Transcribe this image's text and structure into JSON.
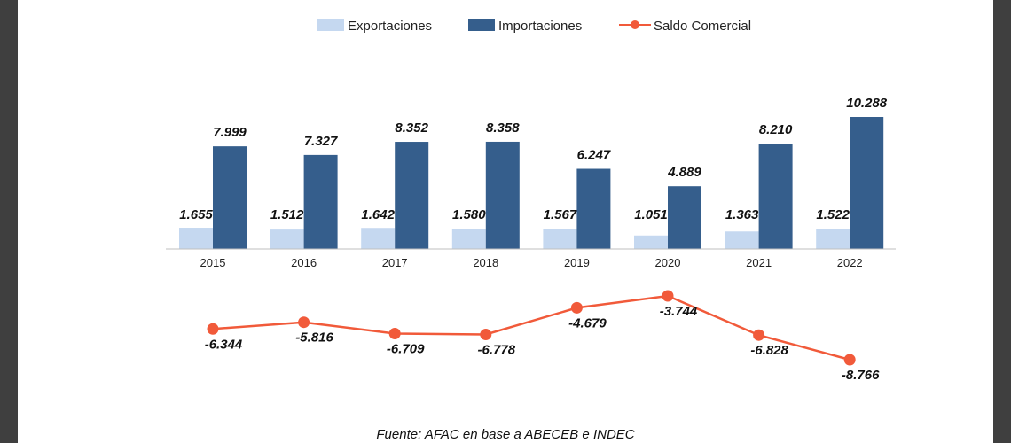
{
  "colors": {
    "exportaciones": "#c5d8f0",
    "importaciones": "#355e8c",
    "saldo": "#f15a3a",
    "frame": "#3f3f3f"
  },
  "legend": {
    "exportaciones": "Exportaciones",
    "importaciones": "Importaciones",
    "saldo": "Saldo Comercial"
  },
  "source": "Fuente: AFAC en base a ABECEB e INDEC",
  "chart_data": {
    "type": "bar",
    "categories": [
      "2015",
      "2016",
      "2017",
      "2018",
      "2019",
      "2020",
      "2021",
      "2022"
    ],
    "series": [
      {
        "name": "Exportaciones",
        "values": [
          1655,
          1512,
          1642,
          1580,
          1567,
          1051,
          1363,
          1522
        ],
        "labels": [
          "1.655",
          "1.512",
          "1.642",
          "1.580",
          "1.567",
          "1.051",
          "1.363",
          "1.522"
        ]
      },
      {
        "name": "Importaciones",
        "values": [
          7999,
          7327,
          8352,
          8358,
          6247,
          4889,
          8210,
          10288
        ],
        "labels": [
          "7.999",
          "7.327",
          "8.352",
          "8.358",
          "6.247",
          "4.889",
          "8.210",
          "10.288"
        ]
      },
      {
        "name": "Saldo Comercial",
        "type": "line",
        "values": [
          -6344,
          -5816,
          -6709,
          -6778,
          -4679,
          -3744,
          -6828,
          -8766
        ],
        "labels": [
          "-6.344",
          "-5.816",
          "-6.709",
          "-6.778",
          "-4.679",
          "-3.744",
          "-6.828",
          "-8.766"
        ]
      }
    ],
    "legend_position": "top",
    "grid": false
  }
}
